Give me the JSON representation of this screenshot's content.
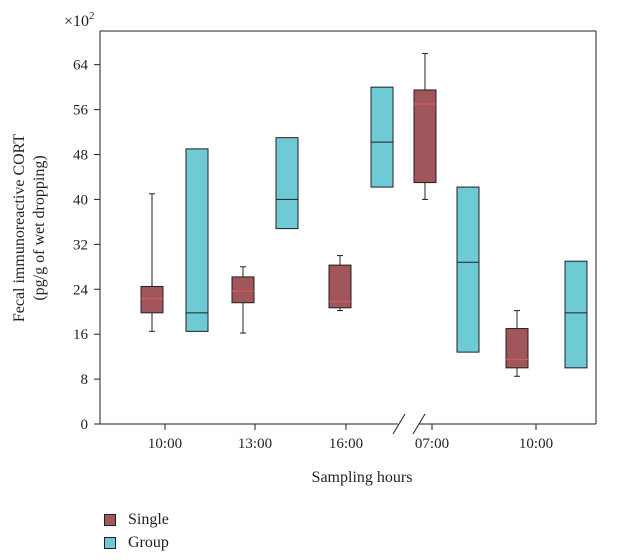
{
  "chart_data": {
    "type": "box",
    "multiplier_label": "×10",
    "multiplier_exponent": "2",
    "ylabel_line1": "Fecal immunoreactive CORT",
    "ylabel_line2": "(pg/g of wet dropping)",
    "xlabel": "Sampling hours",
    "ylim": [
      0,
      70
    ],
    "yticks": [
      0,
      8,
      16,
      24,
      32,
      40,
      48,
      56,
      64
    ],
    "categories": [
      "10:00",
      "13:00",
      "16:00",
      "07:00",
      "10:00"
    ],
    "axis_break": "between 16:00 and 07:00",
    "colors": {
      "Single": "#a0565a",
      "Group": "#6ecbd6",
      "single_median": "#e05a5a"
    },
    "series": [
      {
        "name": "Single",
        "boxes": [
          {
            "category": "10:00",
            "whisker_low": 16.5,
            "q1": 19.8,
            "median": 22.3,
            "q3": 24.5,
            "whisker_high": 41
          },
          {
            "category": "13:00",
            "whisker_low": 16.2,
            "q1": 21.6,
            "median": 23.7,
            "q3": 26.2,
            "whisker_high": 28
          },
          {
            "category": "16:00",
            "whisker_low": 20.2,
            "q1": 20.7,
            "median": 21.8,
            "q3": 28.3,
            "whisker_high": 30
          },
          {
            "category": "07:00",
            "whisker_low": 40,
            "q1": 43,
            "median": 57,
            "q3": 59.5,
            "whisker_high": 66
          },
          {
            "category": "10:00",
            "whisker_low": 8.5,
            "q1": 10,
            "median": 11.5,
            "q3": 17,
            "whisker_high": 20.2
          }
        ]
      },
      {
        "name": "Group",
        "boxes": [
          {
            "category": "10:00",
            "q1": 16.5,
            "median": 19.8,
            "q3": 49
          },
          {
            "category": "13:00",
            "q1": 34.8,
            "median": 40,
            "q3": 51
          },
          {
            "category": "16:00",
            "q1": 42.2,
            "median": 50.2,
            "q3": 60
          },
          {
            "category": "07:00",
            "q1": 12.8,
            "median": 28.8,
            "q3": 42.2
          },
          {
            "category": "10:00",
            "q1": 10,
            "median": 19.8,
            "q3": 29
          }
        ]
      }
    ]
  }
}
